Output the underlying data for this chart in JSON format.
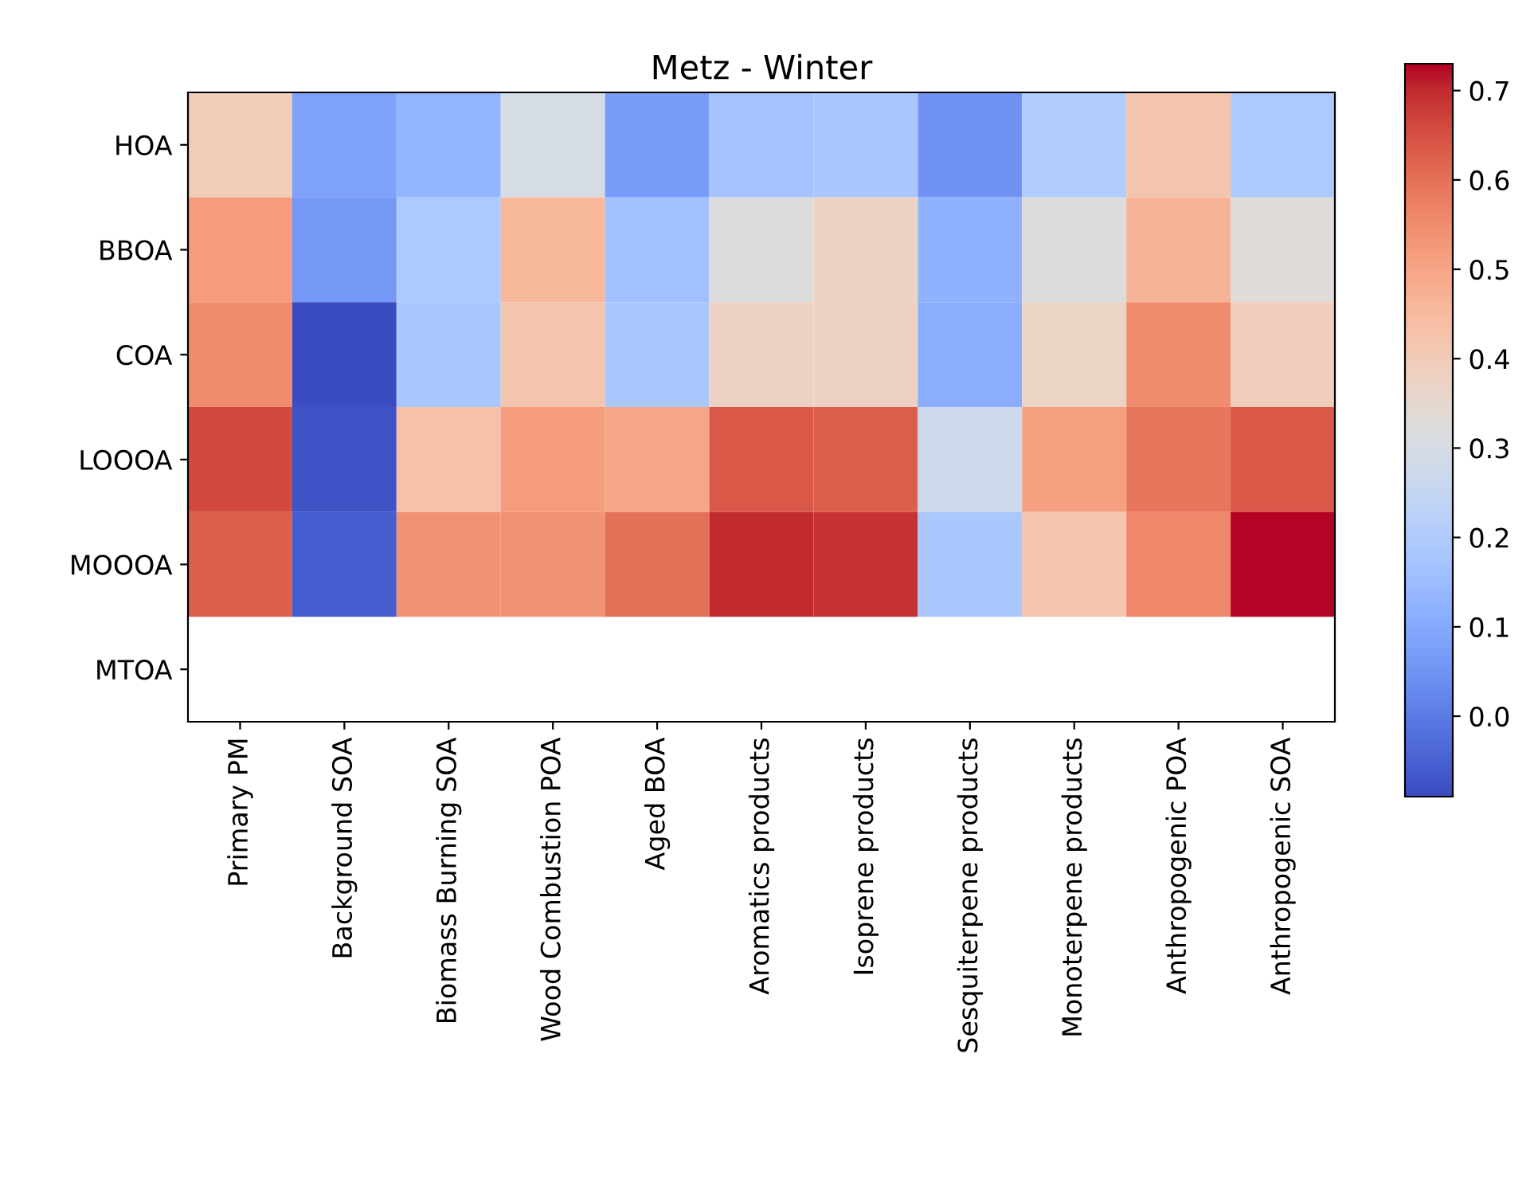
{
  "chart_data": {
    "type": "heatmap",
    "title": "Metz - Winter",
    "categories": [
      "Primary PM",
      "Background SOA",
      "Biomass Burning SOA",
      "Wood Combustion POA",
      "Aged BOA",
      "Aromatics products",
      "Isoprene products",
      "Sesquiterpene products",
      "Monoterpene products",
      "Anthropogenic POA",
      "Anthropogenic SOA"
    ],
    "y_categories": [
      "HOA",
      "BBOA",
      "COA",
      "LOOOA",
      "MOOOA",
      "MTOA"
    ],
    "cells": [
      [
        0.4,
        0.08,
        0.13,
        0.3,
        0.07,
        0.17,
        0.18,
        0.05,
        0.2,
        0.42,
        0.19
      ],
      [
        0.52,
        0.06,
        0.19,
        0.46,
        0.16,
        0.32,
        0.38,
        0.12,
        0.32,
        0.47,
        0.33
      ],
      [
        0.55,
        -0.09,
        0.18,
        0.42,
        0.18,
        0.38,
        0.38,
        0.11,
        0.37,
        0.55,
        0.39
      ],
      [
        0.66,
        -0.08,
        0.43,
        0.52,
        0.5,
        0.64,
        0.63,
        0.27,
        0.51,
        0.59,
        0.64
      ],
      [
        0.63,
        -0.06,
        0.54,
        0.54,
        0.6,
        0.7,
        0.69,
        0.18,
        0.42,
        0.56,
        0.73
      ],
      [
        null,
        null,
        null,
        null,
        null,
        null,
        null,
        null,
        null,
        null,
        null
      ]
    ],
    "clim": [
      -0.09,
      0.73
    ],
    "cticks": [
      {
        "value": 0,
        "label": "0.0"
      },
      0.1,
      0.2,
      0.3,
      0.4,
      0.5,
      0.6,
      0.7
    ]
  }
}
